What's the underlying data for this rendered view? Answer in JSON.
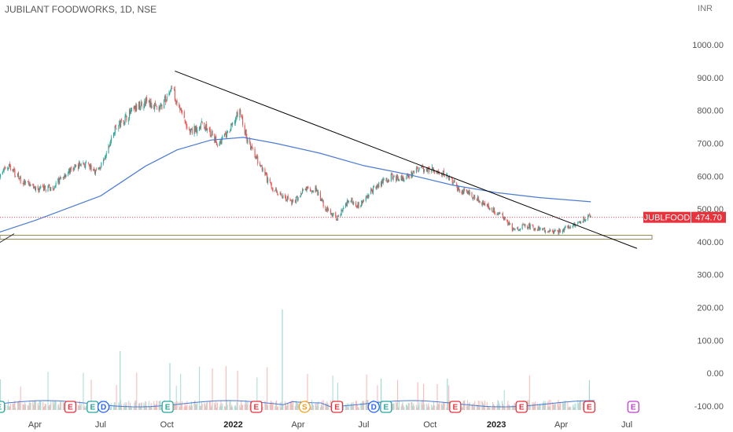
{
  "header": {
    "title": "JUBILANT FOODWORKS, 1D, NSE",
    "currency": "INR"
  },
  "price_tag": {
    "symbol": "JUBLFOOD",
    "price": "474.70",
    "color": "#e8323c"
  },
  "colors": {
    "up": "#26a69a",
    "down": "#ef5350",
    "ma": "#4a7bd4",
    "trendline": "#000000",
    "support_zone": "#8c8a55",
    "volume_ma": "#4a7bd4"
  },
  "chart_data": {
    "type": "candlestick",
    "x_ticks": [
      {
        "label": "Apr",
        "date": "2021-04-01",
        "bold": false
      },
      {
        "label": "Jul",
        "date": "2021-07-01",
        "bold": false
      },
      {
        "label": "Oct",
        "date": "2021-10-01",
        "bold": false
      },
      {
        "label": "2022",
        "date": "2022-01-01",
        "bold": true
      },
      {
        "label": "Apr",
        "date": "2022-04-01",
        "bold": false
      },
      {
        "label": "Jul",
        "date": "2022-07-01",
        "bold": false
      },
      {
        "label": "Oct",
        "date": "2022-10-01",
        "bold": false
      },
      {
        "label": "2023",
        "date": "2023-01-01",
        "bold": true
      },
      {
        "label": "Apr",
        "date": "2023-04-01",
        "bold": false
      },
      {
        "label": "Jul",
        "date": "2023-07-01",
        "bold": false
      }
    ],
    "y_ticks": [
      "1000.00",
      "900.00",
      "800.00",
      "700.00",
      "600.00",
      "500.00",
      "400.00",
      "300.00",
      "200.00",
      "100.00",
      "0.00",
      "-100.00"
    ],
    "ylim": [
      -125,
      1085
    ],
    "price_path": [
      [
        "2021-01-01",
        565
      ],
      [
        "2021-01-20",
        540
      ],
      [
        "2021-02-10",
        600
      ],
      [
        "2021-02-25",
        630
      ],
      [
        "2021-03-15",
        580
      ],
      [
        "2021-04-05",
        560
      ],
      [
        "2021-04-25",
        565
      ],
      [
        "2021-05-15",
        610
      ],
      [
        "2021-06-05",
        640
      ],
      [
        "2021-06-25",
        615
      ],
      [
        "2021-07-05",
        640
      ],
      [
        "2021-07-20",
        740
      ],
      [
        "2021-08-10",
        790
      ],
      [
        "2021-09-01",
        830
      ],
      [
        "2021-09-20",
        800
      ],
      [
        "2021-10-08",
        870
      ],
      [
        "2021-10-20",
        800
      ],
      [
        "2021-11-01",
        730
      ],
      [
        "2021-11-20",
        760
      ],
      [
        "2021-12-10",
        700
      ],
      [
        "2021-12-25",
        730
      ],
      [
        "2022-01-10",
        800
      ],
      [
        "2022-01-20",
        710
      ],
      [
        "2022-02-05",
        640
      ],
      [
        "2022-02-25",
        560
      ],
      [
        "2022-03-10",
        540
      ],
      [
        "2022-03-25",
        520
      ],
      [
        "2022-04-10",
        560
      ],
      [
        "2022-04-25",
        560
      ],
      [
        "2022-05-10",
        500
      ],
      [
        "2022-05-25",
        470
      ],
      [
        "2022-06-10",
        530
      ],
      [
        "2022-06-25",
        510
      ],
      [
        "2022-07-10",
        550
      ],
      [
        "2022-07-25",
        580
      ],
      [
        "2022-08-10",
        600
      ],
      [
        "2022-08-25",
        590
      ],
      [
        "2022-09-10",
        615
      ],
      [
        "2022-09-25",
        625
      ],
      [
        "2022-10-10",
        615
      ],
      [
        "2022-10-25",
        600
      ],
      [
        "2022-11-10",
        560
      ],
      [
        "2022-11-25",
        545
      ],
      [
        "2022-12-10",
        525
      ],
      [
        "2022-12-25",
        500
      ],
      [
        "2023-01-10",
        480
      ],
      [
        "2023-01-25",
        435
      ],
      [
        "2023-02-10",
        450
      ],
      [
        "2023-02-25",
        440
      ],
      [
        "2023-03-10",
        435
      ],
      [
        "2023-03-25",
        430
      ],
      [
        "2023-04-10",
        445
      ],
      [
        "2023-04-25",
        460
      ],
      [
        "2023-05-03",
        470
      ],
      [
        "2023-05-12",
        474.7
      ]
    ],
    "moving_average": [
      [
        "2021-01-01",
        400
      ],
      [
        "2021-04-01",
        465
      ],
      [
        "2021-07-01",
        540
      ],
      [
        "2021-09-01",
        630
      ],
      [
        "2021-10-15",
        680
      ],
      [
        "2021-12-01",
        710
      ],
      [
        "2022-01-15",
        718
      ],
      [
        "2022-03-01",
        700
      ],
      [
        "2022-05-01",
        670
      ],
      [
        "2022-07-01",
        632
      ],
      [
        "2022-09-01",
        605
      ],
      [
        "2022-11-01",
        573
      ],
      [
        "2023-01-01",
        550
      ],
      [
        "2023-03-01",
        535
      ],
      [
        "2023-05-12",
        522
      ]
    ],
    "trendline": {
      "start": [
        "2021-10-12",
        920
      ],
      "end": [
        "2023-07-15",
        380
      ]
    },
    "support_zone": {
      "start": "2021-01-01",
      "end": "2023-07-01",
      "low": 408,
      "high": 420
    },
    "last_price_line": 474.7,
    "events": [
      {
        "date": "2021-02-10",
        "label": "E",
        "kind": "earnings-green"
      },
      {
        "date": "2021-05-20",
        "label": "E",
        "kind": "earnings-red"
      },
      {
        "date": "2021-06-20",
        "label": "E",
        "kind": "earnings-green"
      },
      {
        "date": "2021-07-05",
        "label": "D",
        "kind": "dividend"
      },
      {
        "date": "2021-10-02",
        "label": "E",
        "kind": "earnings-green"
      },
      {
        "date": "2022-02-02",
        "label": "E",
        "kind": "earnings-red"
      },
      {
        "date": "2022-04-10",
        "label": "S",
        "kind": "split"
      },
      {
        "date": "2022-05-25",
        "label": "E",
        "kind": "earnings-red"
      },
      {
        "date": "2022-07-15",
        "label": "D",
        "kind": "dividend"
      },
      {
        "date": "2022-08-01",
        "label": "E",
        "kind": "earnings-green"
      },
      {
        "date": "2022-11-05",
        "label": "E",
        "kind": "earnings-red"
      },
      {
        "date": "2023-02-05",
        "label": "E",
        "kind": "earnings-red"
      },
      {
        "date": "2023-05-10",
        "label": "E",
        "kind": "earnings-red"
      },
      {
        "date": "2023-07-10",
        "label": "E",
        "kind": "earnings-future"
      }
    ]
  }
}
